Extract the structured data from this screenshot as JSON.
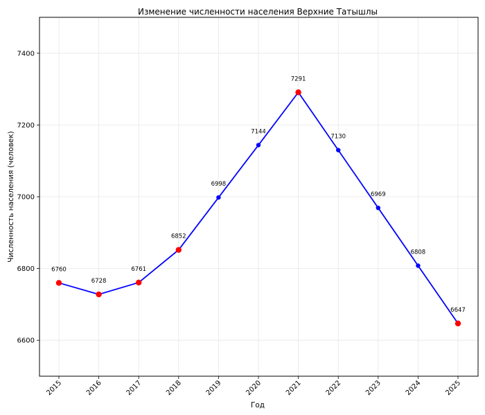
{
  "chart_data": {
    "type": "line",
    "title": "Изменение численности населения Верхние Татышлы",
    "xlabel": "Год",
    "ylabel": "Численность населения (человек)",
    "x": [
      "2015",
      "2016",
      "2017",
      "2018",
      "2019",
      "2020",
      "2021",
      "2022",
      "2023",
      "2024",
      "2025"
    ],
    "series": [
      {
        "values": [
          6760,
          6728,
          6761,
          6852,
          6998,
          7144,
          7291,
          7130,
          6969,
          6808,
          6647
        ],
        "line_color": "#0000ff",
        "marker_colors": [
          "#ff0000",
          "#ff0000",
          "#ff0000",
          "#ff0000",
          "#0000ff",
          "#0000ff",
          "#ff0000",
          "#0000ff",
          "#0000ff",
          "#0000ff",
          "#ff0000"
        ]
      }
    ],
    "data_labels": [
      "6760",
      "6728",
      "6761",
      "6852",
      "6998",
      "7144",
      "7291",
      "7130",
      "6969",
      "6808",
      "6647"
    ],
    "ylim": [
      6500,
      7500
    ],
    "yticks": [
      6600,
      6800,
      7000,
      7200,
      7400
    ],
    "grid": true
  }
}
